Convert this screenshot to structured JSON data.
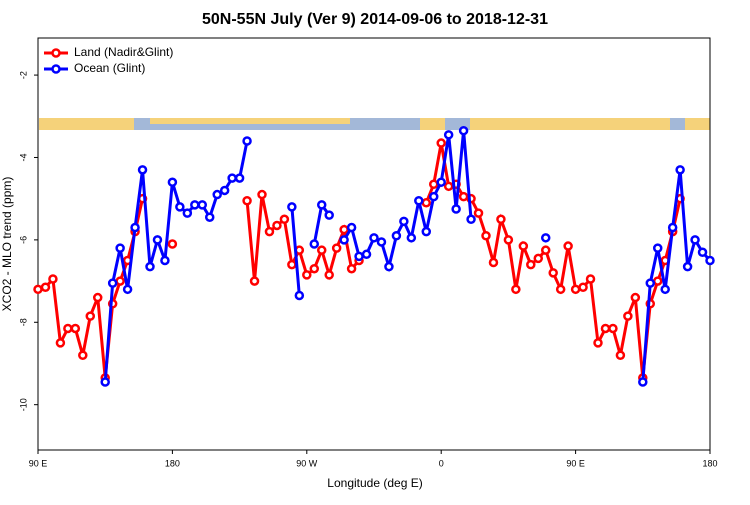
{
  "chart_data": {
    "type": "line",
    "title": "50N-55N July (Ver 9)   2014-09-06 to 2018-12-31",
    "x_label": "Longitude (deg E)",
    "y_label": "XCO2 - MLO trend (ppm)",
    "x": [
      90,
      95,
      100,
      105,
      110,
      115,
      120,
      125,
      130,
      135,
      140,
      145,
      150,
      155,
      160,
      165,
      170,
      175,
      180,
      185,
      190,
      195,
      200,
      205,
      210,
      215,
      220,
      225,
      230,
      235,
      240,
      245,
      250,
      255,
      260,
      265,
      270,
      275,
      280,
      285,
      290,
      295,
      300,
      305,
      310,
      315,
      320,
      325,
      330,
      335,
      340,
      345,
      350,
      355,
      360,
      365,
      370,
      375,
      380,
      385,
      390,
      395,
      400,
      405,
      410,
      415,
      420,
      425,
      430,
      435,
      440,
      445,
      450,
      455,
      460,
      465,
      470,
      475,
      480,
      485,
      490,
      495,
      500,
      505,
      510,
      515,
      520,
      525,
      530,
      535,
      540
    ],
    "series": [
      {
        "name": "Land (Nadir&Glint)",
        "color": "#ff0000",
        "values": [
          -7.2,
          -7.15,
          -6.95,
          -8.5,
          -8.15,
          -8.15,
          -8.8,
          -7.85,
          -7.4,
          -9.35,
          -7.55,
          -7.0,
          -6.5,
          -5.8,
          -5.0,
          null,
          null,
          null,
          -6.1,
          null,
          null,
          null,
          null,
          null,
          null,
          null,
          null,
          null,
          -5.05,
          -7.0,
          -4.9,
          -5.8,
          -5.65,
          -5.5,
          -6.6,
          -6.25,
          -6.85,
          -6.7,
          -6.25,
          -6.85,
          -6.2,
          -5.75,
          -6.7,
          -6.5,
          null,
          null,
          null,
          null,
          null,
          null,
          null,
          null,
          -5.1,
          -4.65,
          -3.65,
          -4.7,
          -4.65,
          -4.95,
          -5.0,
          -5.35,
          -5.9,
          -6.55,
          -5.5,
          -6.0,
          -7.2,
          -6.15,
          -6.6,
          -6.45,
          -6.25,
          -6.8,
          -7.2,
          -6.15,
          -7.2,
          -7.15,
          -6.95,
          -8.5,
          -8.15,
          -8.15,
          -8.8,
          -7.85,
          -7.4,
          -9.35,
          -7.55,
          -7.0,
          -6.5,
          -5.8,
          -5.0,
          null,
          null,
          null,
          null
        ]
      },
      {
        "name": "Ocean (Glint)",
        "color": "#0000ff",
        "values": [
          null,
          null,
          null,
          null,
          null,
          null,
          null,
          null,
          null,
          -9.45,
          -7.05,
          -6.2,
          -7.2,
          -5.7,
          -4.3,
          -6.65,
          -6.0,
          -6.5,
          -4.6,
          -5.2,
          -5.35,
          -5.15,
          -5.15,
          -5.45,
          -4.9,
          -4.8,
          -4.5,
          -4.5,
          -3.6,
          null,
          null,
          null,
          null,
          null,
          -5.2,
          -7.35,
          null,
          -6.1,
          -5.15,
          -5.4,
          null,
          -6.0,
          -5.7,
          -6.4,
          -6.35,
          -5.95,
          -6.05,
          -6.65,
          -5.9,
          -5.55,
          -5.95,
          -5.05,
          -5.8,
          -4.95,
          -4.6,
          -3.45,
          -5.25,
          -3.35,
          -5.5,
          null,
          null,
          null,
          null,
          null,
          null,
          null,
          null,
          null,
          -5.95,
          null,
          null,
          null,
          null,
          null,
          null,
          null,
          null,
          null,
          null,
          null,
          null,
          -9.45,
          -7.05,
          -6.2,
          -7.2,
          -5.7,
          -4.3,
          -6.65,
          -6.0,
          -6.3,
          -6.5
        ]
      }
    ],
    "xlim": [
      90,
      540
    ],
    "xticks": [
      {
        "value": 90,
        "label": "90 E"
      },
      {
        "value": 180,
        "label": "180"
      },
      {
        "value": 270,
        "label": "90 W"
      },
      {
        "value": 360,
        "label": "0"
      },
      {
        "value": 450,
        "label": "90 E"
      },
      {
        "value": 540,
        "label": "180"
      }
    ],
    "ylim": [
      -11.1,
      -1.1
    ],
    "yticks": [
      -10,
      -8,
      -6,
      -4,
      -2
    ],
    "legend": "upper left"
  }
}
